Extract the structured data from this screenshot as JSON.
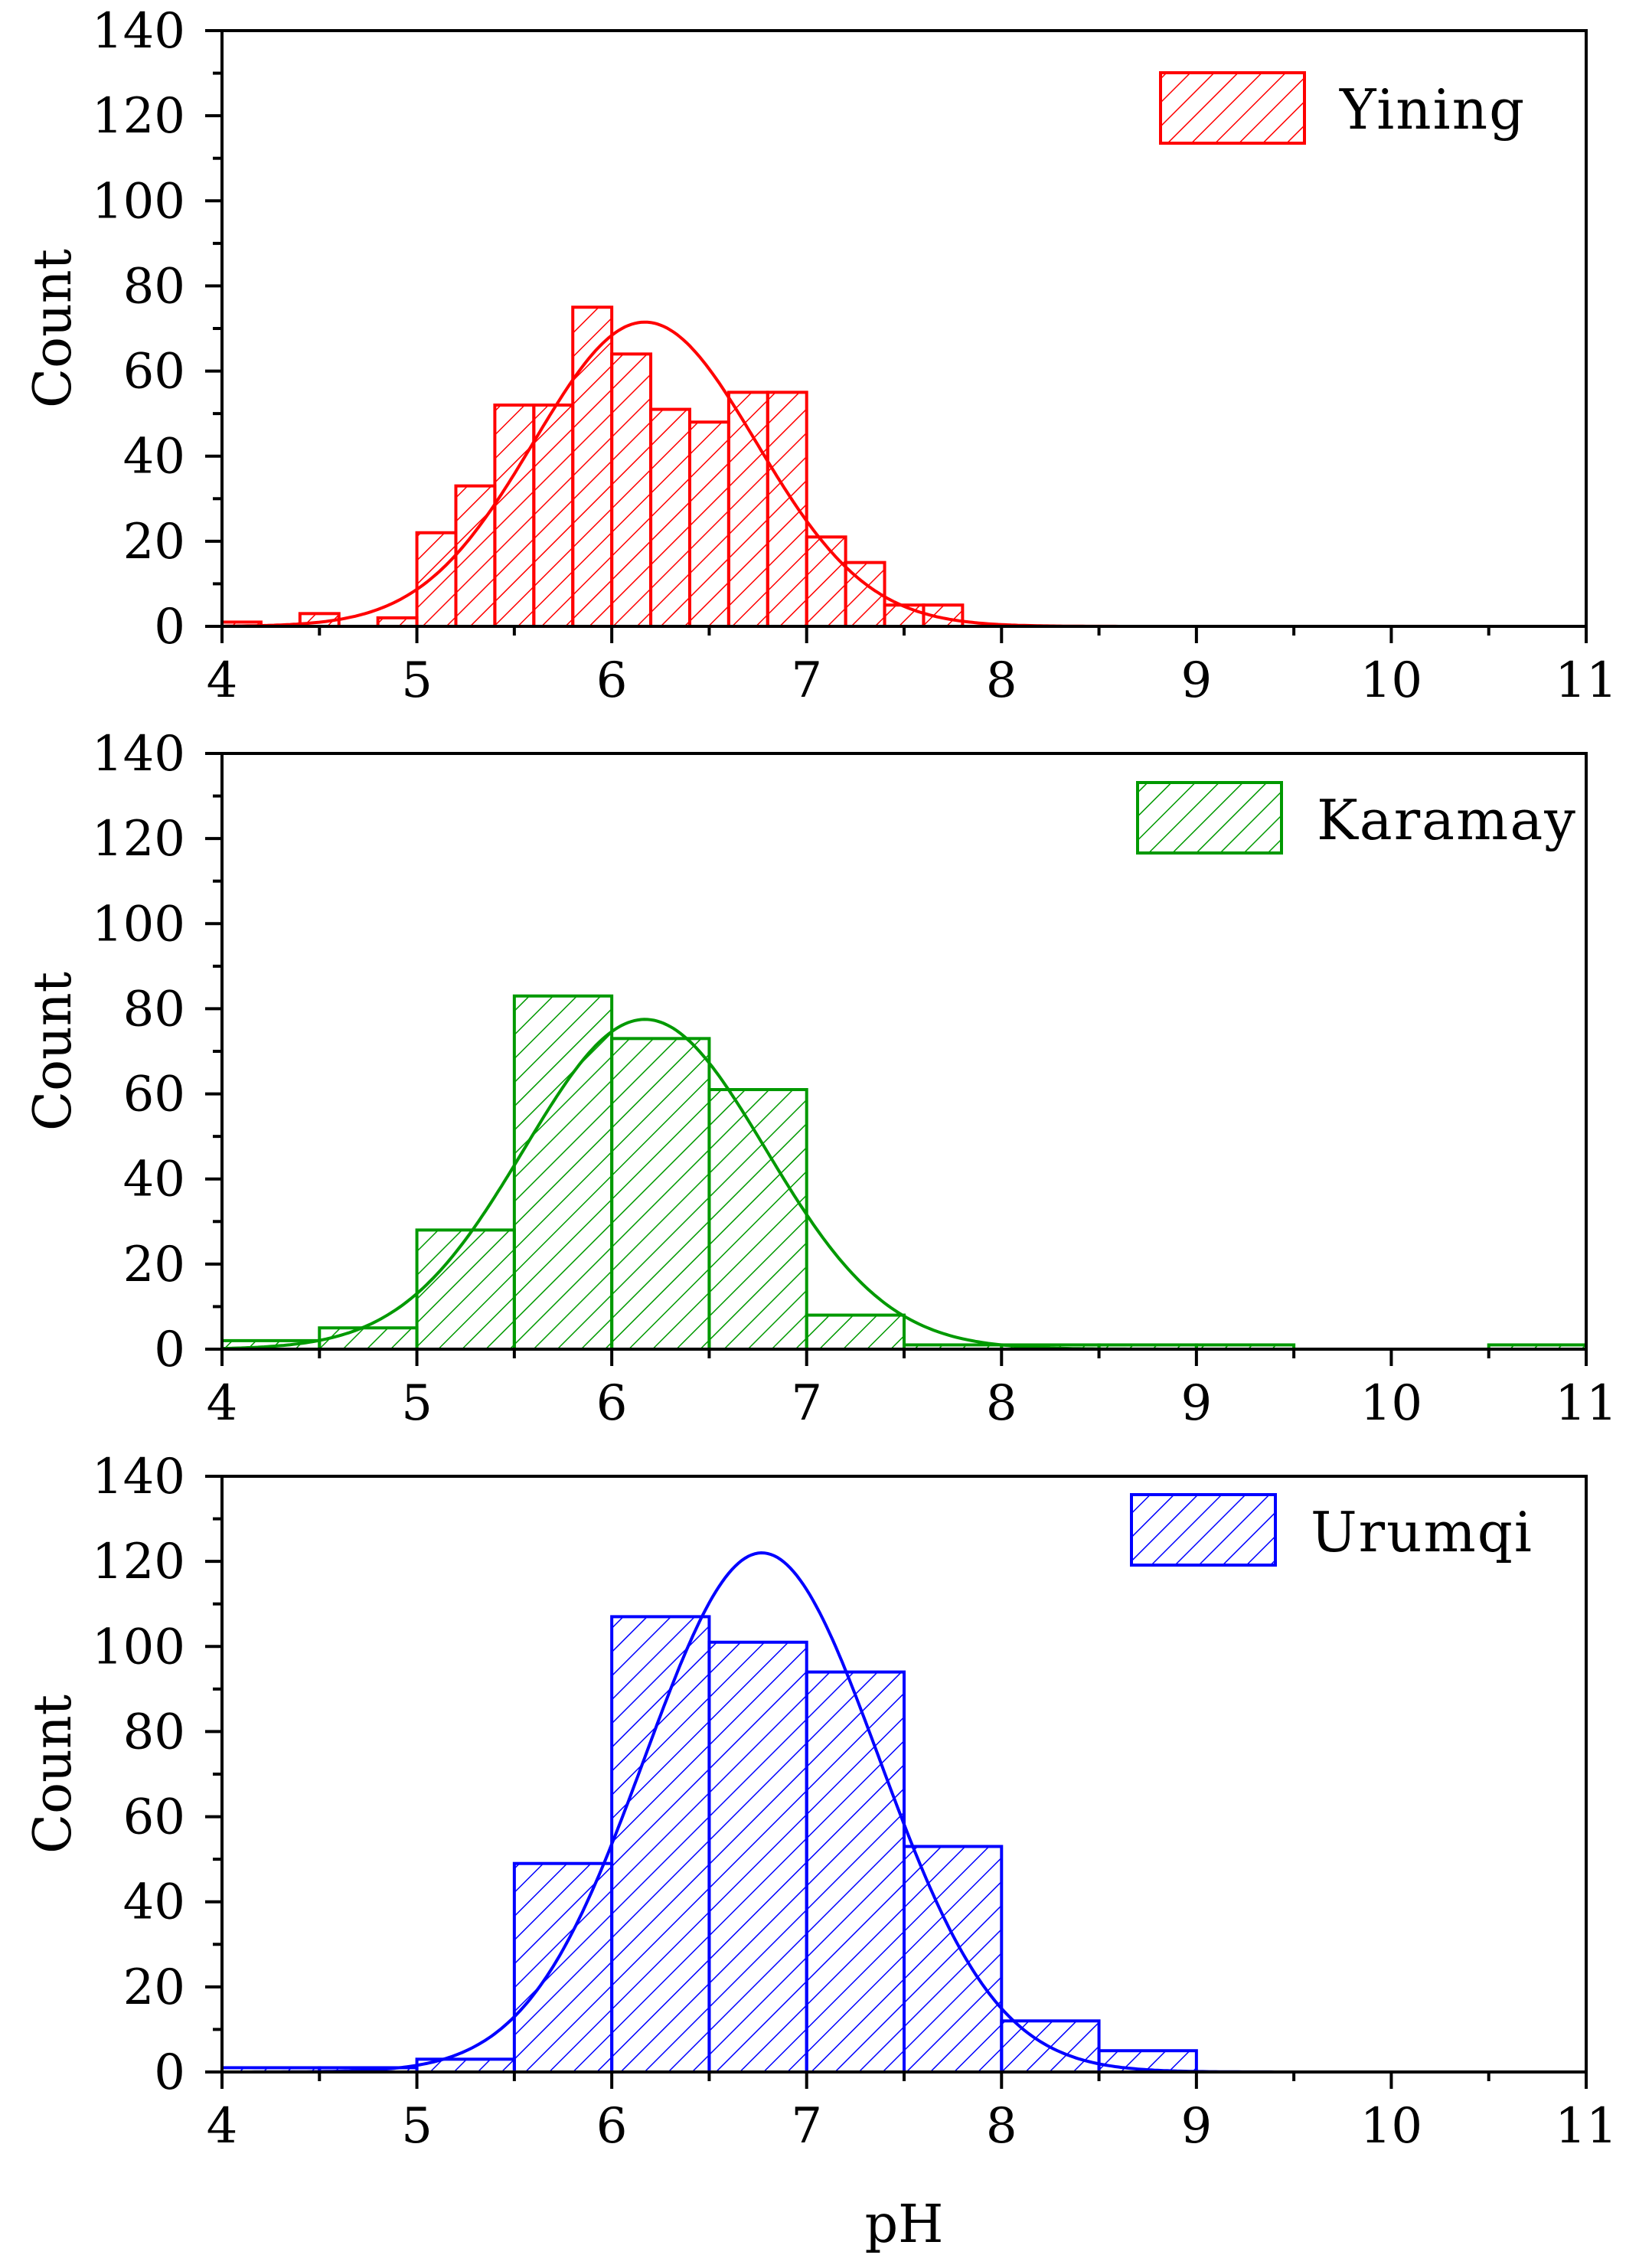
{
  "chart_data": [
    {
      "type": "bar",
      "panel": "top",
      "series_name": "Yining",
      "color": "#ff0000",
      "xlabel": "",
      "ylabel": "Count",
      "xlim": [
        4,
        11
      ],
      "ylim": [
        0,
        140
      ],
      "xticks": [
        "4",
        "5",
        "6",
        "7",
        "8",
        "9",
        "10",
        "11"
      ],
      "yticks": [
        "0",
        "20",
        "40",
        "60",
        "80",
        "100",
        "120",
        "140"
      ],
      "bins": [
        {
          "from": 4.0,
          "to": 4.2,
          "count": 1
        },
        {
          "from": 4.2,
          "to": 4.4,
          "count": 0
        },
        {
          "from": 4.4,
          "to": 4.6,
          "count": 3
        },
        {
          "from": 4.6,
          "to": 4.8,
          "count": 0
        },
        {
          "from": 4.8,
          "to": 5.0,
          "count": 2
        },
        {
          "from": 5.0,
          "to": 5.2,
          "count": 22
        },
        {
          "from": 5.2,
          "to": 5.4,
          "count": 33
        },
        {
          "from": 5.4,
          "to": 5.6,
          "count": 52
        },
        {
          "from": 5.6,
          "to": 5.8,
          "count": 52
        },
        {
          "from": 5.8,
          "to": 6.0,
          "count": 75
        },
        {
          "from": 6.0,
          "to": 6.2,
          "count": 64
        },
        {
          "from": 6.2,
          "to": 6.4,
          "count": 51
        },
        {
          "from": 6.4,
          "to": 6.6,
          "count": 48
        },
        {
          "from": 6.6,
          "to": 6.8,
          "count": 55
        },
        {
          "from": 6.8,
          "to": 7.0,
          "count": 55
        },
        {
          "from": 7.0,
          "to": 7.2,
          "count": 21
        },
        {
          "from": 7.2,
          "to": 7.4,
          "count": 15
        },
        {
          "from": 7.4,
          "to": 7.6,
          "count": 5
        },
        {
          "from": 7.6,
          "to": 7.8,
          "count": 5
        }
      ],
      "normal_fit": {
        "mean": 6.17,
        "sd": 0.57,
        "peak": 71.5
      }
    },
    {
      "type": "bar",
      "panel": "middle",
      "series_name": "Karamay",
      "color": "#009900",
      "xlabel": "",
      "ylabel": "Count",
      "xlim": [
        4,
        11
      ],
      "ylim": [
        0,
        140
      ],
      "xticks": [
        "4",
        "5",
        "6",
        "7",
        "8",
        "9",
        "10",
        "11"
      ],
      "yticks": [
        "0",
        "20",
        "40",
        "60",
        "80",
        "100",
        "120",
        "140"
      ],
      "bins": [
        {
          "from": 4.0,
          "to": 4.5,
          "count": 2
        },
        {
          "from": 4.5,
          "to": 5.0,
          "count": 5
        },
        {
          "from": 5.0,
          "to": 5.5,
          "count": 28
        },
        {
          "from": 5.5,
          "to": 6.0,
          "count": 83
        },
        {
          "from": 6.0,
          "to": 6.5,
          "count": 73
        },
        {
          "from": 6.5,
          "to": 7.0,
          "count": 61
        },
        {
          "from": 7.0,
          "to": 7.5,
          "count": 8
        },
        {
          "from": 7.5,
          "to": 8.0,
          "count": 1
        },
        {
          "from": 8.0,
          "to": 8.5,
          "count": 1
        },
        {
          "from": 8.5,
          "to": 9.0,
          "count": 1
        },
        {
          "from": 9.0,
          "to": 9.5,
          "count": 1
        },
        {
          "from": 9.5,
          "to": 10.0,
          "count": 0
        },
        {
          "from": 10.0,
          "to": 10.5,
          "count": 0
        },
        {
          "from": 10.5,
          "to": 11.0,
          "count": 1
        }
      ],
      "normal_fit": {
        "mean": 6.17,
        "sd": 0.62,
        "peak": 77.5
      }
    },
    {
      "type": "bar",
      "panel": "bottom",
      "series_name": "Urumqi",
      "color": "#0000ff",
      "xlabel": "pH",
      "ylabel": "Count",
      "xlim": [
        4,
        11
      ],
      "ylim": [
        0,
        140
      ],
      "xticks": [
        "4",
        "5",
        "6",
        "7",
        "8",
        "9",
        "10",
        "11"
      ],
      "yticks": [
        "0",
        "20",
        "40",
        "60",
        "80",
        "100",
        "120",
        "140"
      ],
      "bins": [
        {
          "from": 4.0,
          "to": 4.5,
          "count": 1
        },
        {
          "from": 4.5,
          "to": 5.0,
          "count": 1
        },
        {
          "from": 5.0,
          "to": 5.5,
          "count": 3
        },
        {
          "from": 5.5,
          "to": 6.0,
          "count": 49
        },
        {
          "from": 6.0,
          "to": 6.5,
          "count": 107
        },
        {
          "from": 6.5,
          "to": 7.0,
          "count": 101
        },
        {
          "from": 7.0,
          "to": 7.5,
          "count": 94
        },
        {
          "from": 7.5,
          "to": 8.0,
          "count": 53
        },
        {
          "from": 8.0,
          "to": 8.5,
          "count": 12
        },
        {
          "from": 8.5,
          "to": 9.0,
          "count": 5
        }
      ],
      "normal_fit": {
        "mean": 6.77,
        "sd": 0.6,
        "peak": 122
      }
    }
  ]
}
